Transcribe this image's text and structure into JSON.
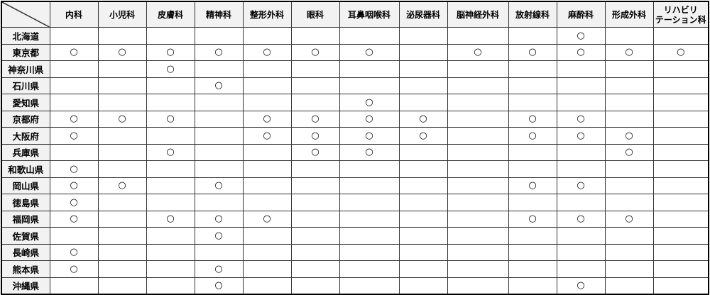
{
  "table": {
    "columns": [
      "内科",
      "小児科",
      "皮膚科",
      "精神科",
      "整形外科",
      "眼科",
      "耳鼻咽喉科",
      "泌尿器科",
      "脳神経外科",
      "放射線科",
      "麻酔科",
      "形成外科",
      "リハビリテーション科"
    ],
    "column_header_lines": [
      [
        "内科"
      ],
      [
        "小児科"
      ],
      [
        "皮膚科"
      ],
      [
        "精神科"
      ],
      [
        "整形外科"
      ],
      [
        "眼科"
      ],
      [
        "耳鼻咽喉科"
      ],
      [
        "泌尿器科"
      ],
      [
        "脳神経外科"
      ],
      [
        "放射線科"
      ],
      [
        "麻酔科"
      ],
      [
        "形成外科"
      ],
      [
        "リハビリ",
        "テーション科"
      ]
    ],
    "rows": [
      {
        "name": "北海道",
        "cells": [
          "",
          "",
          "",
          "",
          "",
          "",
          "",
          "",
          "",
          "",
          "○",
          "",
          ""
        ]
      },
      {
        "name": "東京都",
        "cells": [
          "○",
          "○",
          "○",
          "○",
          "○",
          "○",
          "○",
          "",
          "○",
          "○",
          "○",
          "○",
          "○"
        ]
      },
      {
        "name": "神奈川県",
        "cells": [
          "",
          "",
          "○",
          "",
          "",
          "",
          "",
          "",
          "",
          "",
          "",
          "",
          ""
        ]
      },
      {
        "name": "石川県",
        "cells": [
          "",
          "",
          "",
          "○",
          "",
          "",
          "",
          "",
          "",
          "",
          "",
          "",
          ""
        ]
      },
      {
        "name": "愛知県",
        "cells": [
          "",
          "",
          "",
          "",
          "",
          "",
          "○",
          "",
          "",
          "",
          "",
          "",
          ""
        ]
      },
      {
        "name": "京都府",
        "cells": [
          "○",
          "○",
          "○",
          "",
          "○",
          "○",
          "○",
          "○",
          "",
          "○",
          "○",
          "",
          ""
        ]
      },
      {
        "name": "大阪府",
        "cells": [
          "○",
          "",
          "",
          "",
          "○",
          "○",
          "○",
          "○",
          "",
          "○",
          "○",
          "○",
          ""
        ]
      },
      {
        "name": "兵庫県",
        "cells": [
          "",
          "",
          "○",
          "",
          "",
          "○",
          "○",
          "",
          "",
          "",
          "",
          "○",
          ""
        ]
      },
      {
        "name": "和歌山県",
        "cells": [
          "○",
          "",
          "",
          "",
          "",
          "",
          "",
          "",
          "",
          "",
          "",
          "",
          ""
        ]
      },
      {
        "name": "岡山県",
        "cells": [
          "○",
          "○",
          "",
          "○",
          "",
          "",
          "",
          "",
          "",
          "○",
          "○",
          "",
          ""
        ]
      },
      {
        "name": "徳島県",
        "cells": [
          "○",
          "",
          "",
          "",
          "",
          "",
          "",
          "",
          "",
          "",
          "",
          "",
          ""
        ]
      },
      {
        "name": "福岡県",
        "cells": [
          "○",
          "",
          "○",
          "○",
          "○",
          "",
          "",
          "",
          "",
          "○",
          "○",
          "○",
          ""
        ]
      },
      {
        "name": "佐賀県",
        "cells": [
          "",
          "",
          "",
          "○",
          "",
          "",
          "",
          "",
          "",
          "",
          "",
          "",
          ""
        ]
      },
      {
        "name": "長崎県",
        "cells": [
          "○",
          "",
          "",
          "",
          "",
          "",
          "",
          "",
          "",
          "",
          "",
          "",
          ""
        ]
      },
      {
        "name": "熊本県",
        "cells": [
          "○",
          "",
          "",
          "○",
          "",
          "",
          "",
          "",
          "",
          "",
          "",
          "",
          ""
        ]
      },
      {
        "name": "沖縄県",
        "cells": [
          "",
          "",
          "",
          "○",
          "",
          "",
          "",
          "",
          "",
          "",
          "○",
          "",
          ""
        ]
      }
    ]
  }
}
